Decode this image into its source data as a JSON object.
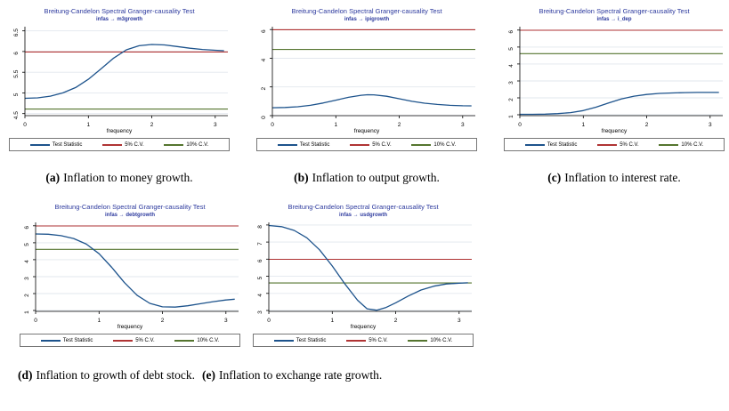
{
  "colors": {
    "title_blue": "#2d3a9e",
    "test_statistic": "#1d538c",
    "cv5_red": "#b03434",
    "cv10_green": "#55752f",
    "grid": "#e2e7ee",
    "axis": "#000000"
  },
  "legend": {
    "items": [
      {
        "label": "Test Statistic",
        "color": "#1d538c"
      },
      {
        "label": "5% C.V.",
        "color": "#b03434"
      },
      {
        "label": "10% C.V.",
        "color": "#55752f"
      }
    ]
  },
  "captions": [
    {
      "label": "(a)",
      "text": "Inflation to money growth."
    },
    {
      "label": "(b)",
      "text": "Inflation to output growth."
    },
    {
      "label": "(c)",
      "text": "Inflation to interest rate."
    },
    {
      "label": "(d)",
      "text": "Inflation to growth of debt stock."
    },
    {
      "label": "(e)",
      "text": "Inflation to exchange rate growth."
    }
  ],
  "chart_data": [
    {
      "type": "line",
      "title": "Breitung-Candelon Spectral Granger-causality Test",
      "subtitle": "infas → m3growth",
      "xlabel": "frequency",
      "xlim": [
        0,
        3.2
      ],
      "xticks": [
        0,
        1,
        2,
        3
      ],
      "ylim": [
        4.45,
        6.6
      ],
      "yticks": [
        4.5,
        5,
        5.5,
        6,
        6.5
      ],
      "ytick_labels": [
        "4.5",
        "5",
        "5.5",
        "6",
        "6.5"
      ],
      "cv5": 5.99,
      "cv10": 4.61,
      "points": [
        [
          0,
          4.87
        ],
        [
          0.2,
          4.88
        ],
        [
          0.4,
          4.92
        ],
        [
          0.6,
          5.0
        ],
        [
          0.8,
          5.13
        ],
        [
          1.0,
          5.33
        ],
        [
          1.2,
          5.58
        ],
        [
          1.4,
          5.84
        ],
        [
          1.6,
          6.04
        ],
        [
          1.8,
          6.14
        ],
        [
          2.0,
          6.17
        ],
        [
          2.2,
          6.16
        ],
        [
          2.4,
          6.12
        ],
        [
          2.6,
          6.08
        ],
        [
          2.8,
          6.05
        ],
        [
          3.0,
          6.03
        ],
        [
          3.14,
          6.02
        ]
      ]
    },
    {
      "type": "line",
      "title": "Breitung-Candelon Spectral Granger-causality Test",
      "subtitle": "infas → ipigrowth",
      "xlabel": "frequency",
      "xlim": [
        0,
        3.2
      ],
      "xticks": [
        0,
        1,
        2,
        3
      ],
      "ylim": [
        0,
        6.2
      ],
      "yticks": [
        0,
        2,
        4,
        6
      ],
      "ytick_labels": [
        "0",
        "2",
        "4",
        "6"
      ],
      "cv5": 5.99,
      "cv10": 4.61,
      "points": [
        [
          0,
          0.55
        ],
        [
          0.2,
          0.57
        ],
        [
          0.4,
          0.62
        ],
        [
          0.6,
          0.72
        ],
        [
          0.8,
          0.88
        ],
        [
          1.0,
          1.08
        ],
        [
          1.2,
          1.28
        ],
        [
          1.4,
          1.42
        ],
        [
          1.5,
          1.46
        ],
        [
          1.6,
          1.45
        ],
        [
          1.8,
          1.35
        ],
        [
          2.0,
          1.18
        ],
        [
          2.2,
          1.0
        ],
        [
          2.4,
          0.87
        ],
        [
          2.6,
          0.78
        ],
        [
          2.8,
          0.72
        ],
        [
          3.0,
          0.69
        ],
        [
          3.14,
          0.68
        ]
      ]
    },
    {
      "type": "line",
      "title": "Breitung-Candelon Spectral Granger-causality Test",
      "subtitle": "infas → i_dep",
      "xlabel": "frequency",
      "xlim": [
        0,
        3.2
      ],
      "xticks": [
        0,
        1,
        2,
        3
      ],
      "ylim": [
        0.95,
        6.2
      ],
      "yticks": [
        1,
        2,
        3,
        4,
        5,
        6
      ],
      "ytick_labels": [
        "1",
        "2",
        "3",
        "4",
        "5",
        "6"
      ],
      "cv5": 5.99,
      "cv10": 4.61,
      "points": [
        [
          0,
          1.03
        ],
        [
          0.2,
          1.03
        ],
        [
          0.4,
          1.04
        ],
        [
          0.6,
          1.07
        ],
        [
          0.8,
          1.13
        ],
        [
          1.0,
          1.25
        ],
        [
          1.2,
          1.45
        ],
        [
          1.4,
          1.7
        ],
        [
          1.6,
          1.93
        ],
        [
          1.8,
          2.1
        ],
        [
          2.0,
          2.2
        ],
        [
          2.2,
          2.26
        ],
        [
          2.4,
          2.29
        ],
        [
          2.6,
          2.31
        ],
        [
          2.8,
          2.32
        ],
        [
          3.0,
          2.32
        ],
        [
          3.14,
          2.32
        ]
      ]
    },
    {
      "type": "line",
      "title": "Breitung-Candelon Spectral Granger-causality Test",
      "subtitle": "infas → debtgrowth",
      "xlabel": "frequency",
      "xlim": [
        0,
        3.2
      ],
      "xticks": [
        0,
        1,
        2,
        3
      ],
      "ylim": [
        0.95,
        6.2
      ],
      "yticks": [
        1,
        2,
        3,
        4,
        5,
        6
      ],
      "ytick_labels": [
        "1",
        "2",
        "3",
        "4",
        "5",
        "6"
      ],
      "cv5": 5.99,
      "cv10": 4.61,
      "points": [
        [
          0,
          5.52
        ],
        [
          0.2,
          5.5
        ],
        [
          0.4,
          5.42
        ],
        [
          0.6,
          5.25
        ],
        [
          0.8,
          4.92
        ],
        [
          1.0,
          4.35
        ],
        [
          1.2,
          3.55
        ],
        [
          1.4,
          2.65
        ],
        [
          1.6,
          1.9
        ],
        [
          1.8,
          1.42
        ],
        [
          2.0,
          1.22
        ],
        [
          2.2,
          1.2
        ],
        [
          2.4,
          1.28
        ],
        [
          2.6,
          1.4
        ],
        [
          2.8,
          1.52
        ],
        [
          3.0,
          1.62
        ],
        [
          3.14,
          1.67
        ]
      ]
    },
    {
      "type": "line",
      "title": "Breitung-Candelon Spectral Granger-causality Test",
      "subtitle": "infas → usdgrowth",
      "xlabel": "frequency",
      "xlim": [
        0,
        3.2
      ],
      "xticks": [
        0,
        1,
        2,
        3
      ],
      "ylim": [
        2.95,
        8.15
      ],
      "yticks": [
        3,
        4,
        5,
        6,
        7,
        8
      ],
      "ytick_labels": [
        "3",
        "4",
        "5",
        "6",
        "7",
        "8"
      ],
      "cv5": 5.99,
      "cv10": 4.61,
      "points": [
        [
          0,
          7.97
        ],
        [
          0.2,
          7.9
        ],
        [
          0.4,
          7.68
        ],
        [
          0.6,
          7.25
        ],
        [
          0.8,
          6.55
        ],
        [
          1.0,
          5.6
        ],
        [
          1.2,
          4.55
        ],
        [
          1.4,
          3.6
        ],
        [
          1.55,
          3.1
        ],
        [
          1.7,
          3.02
        ],
        [
          1.85,
          3.18
        ],
        [
          2.0,
          3.45
        ],
        [
          2.2,
          3.85
        ],
        [
          2.4,
          4.2
        ],
        [
          2.6,
          4.42
        ],
        [
          2.8,
          4.55
        ],
        [
          3.0,
          4.6
        ],
        [
          3.14,
          4.62
        ]
      ]
    }
  ]
}
